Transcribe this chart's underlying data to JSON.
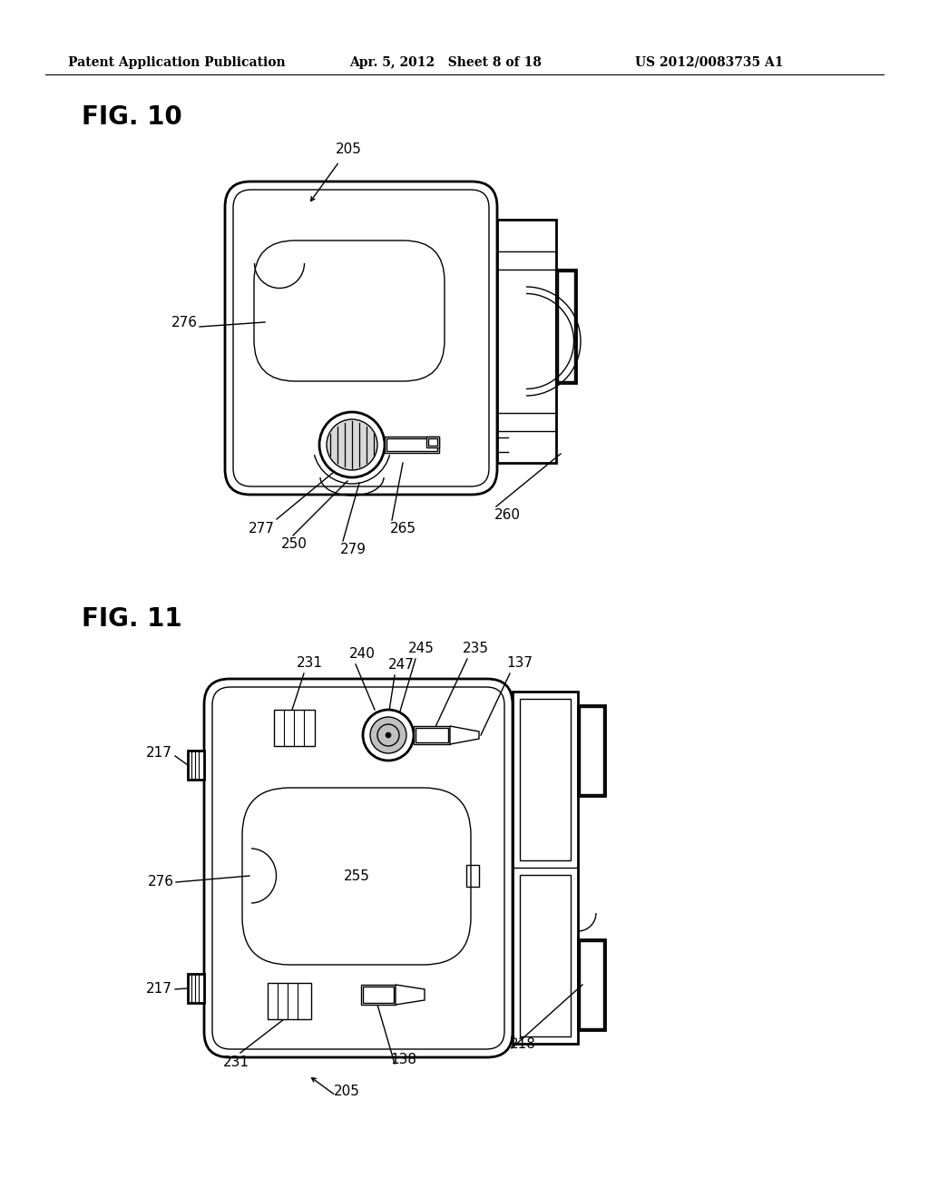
{
  "background_color": "#ffffff",
  "header_left": "Patent Application Publication",
  "header_center": "Apr. 5, 2012   Sheet 8 of 18",
  "header_right": "US 2012/0083735 A1",
  "fig10_title": "FIG. 10",
  "fig11_title": "FIG. 11",
  "line_color": "#000000",
  "lw_thick": 2.0,
  "lw_thin": 1.0,
  "lw_med": 1.5,
  "label_fontsize": 11,
  "header_fontsize": 10,
  "figtitle_fontsize": 20
}
